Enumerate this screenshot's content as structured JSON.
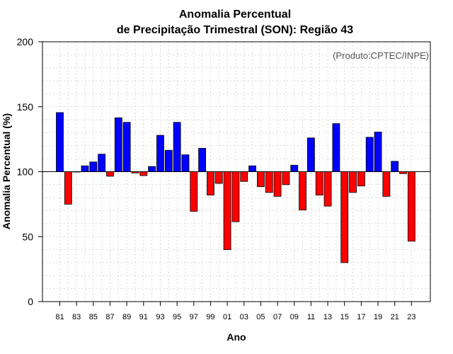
{
  "chart_data": {
    "type": "bar",
    "title": "Anomalia Percentual",
    "subtitle": "de Precipitação Trimestral (SON): Região 43",
    "credit": "(Produto:CPTEC/INPE)",
    "xlabel": "Ano",
    "ylabel": "Anomalia Percentual (%)",
    "ylim": [
      0,
      200
    ],
    "yticks": [
      0,
      50,
      100,
      150,
      200
    ],
    "baseline": 100,
    "grid": true,
    "colors": {
      "above": "#0000ff",
      "below": "#ff0000",
      "edge": "#000000",
      "grid": "#d9d9d9"
    },
    "categories": [
      "81",
      "82",
      "83",
      "84",
      "85",
      "86",
      "87",
      "88",
      "89",
      "90",
      "91",
      "92",
      "93",
      "94",
      "95",
      "96",
      "97",
      "98",
      "99",
      "00",
      "01",
      "02",
      "03",
      "04",
      "05",
      "06",
      "07",
      "08",
      "09",
      "10",
      "11",
      "12",
      "13",
      "14",
      "15",
      "16",
      "17",
      "18",
      "19",
      "20",
      "21",
      "22",
      "23"
    ],
    "xtick_labels": [
      "81",
      "83",
      "85",
      "87",
      "89",
      "91",
      "93",
      "95",
      "97",
      "99",
      "01",
      "03",
      "05",
      "07",
      "09",
      "11",
      "13",
      "15",
      "17",
      "19",
      "21",
      "23"
    ],
    "values": [
      145.5,
      75,
      100,
      104.5,
      107.5,
      113.5,
      96.5,
      141.5,
      138,
      99,
      97,
      104,
      128,
      116.5,
      138,
      113,
      69.5,
      118,
      82,
      91,
      40,
      61.5,
      92.5,
      104.5,
      88.5,
      84,
      81,
      90,
      105,
      70.5,
      126,
      82,
      73.5,
      137,
      30,
      84,
      89,
      126.5,
      130.5,
      81,
      108,
      98.5,
      46.5
    ]
  }
}
